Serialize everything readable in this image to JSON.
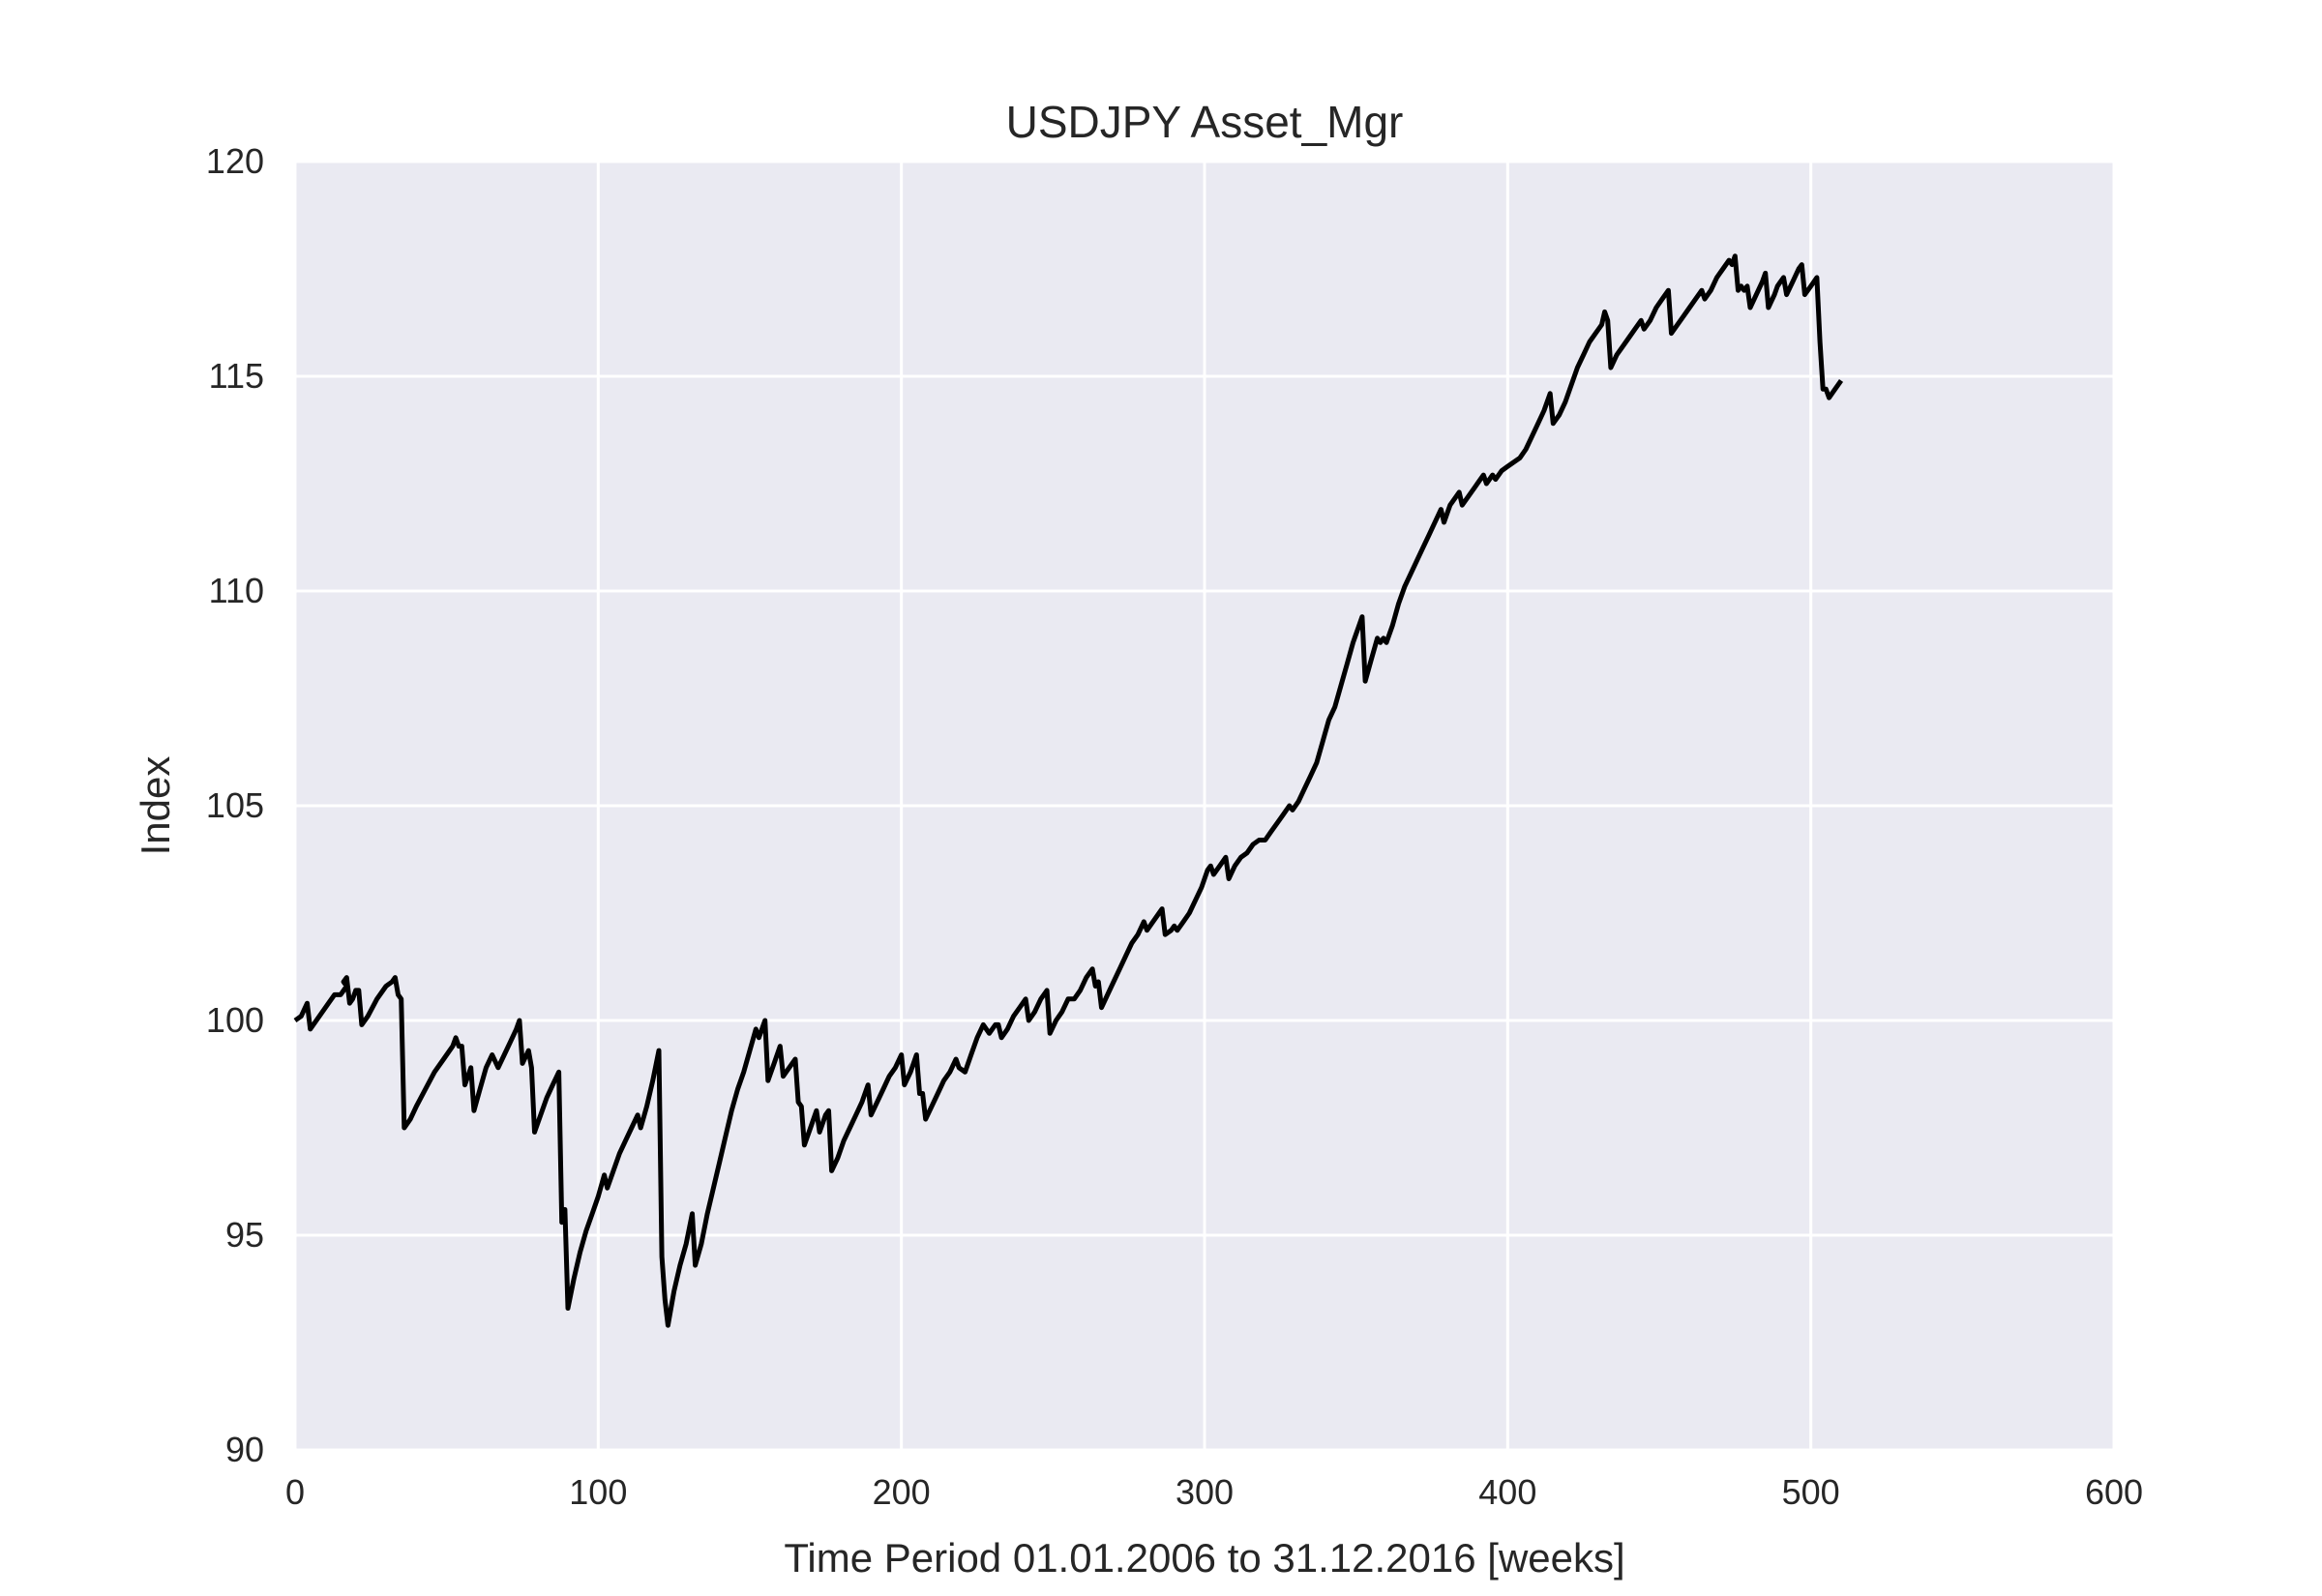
{
  "chart_data": {
    "type": "line",
    "title": "USDJPY Asset_Mgr",
    "xlabel": "Time Period 01.01.2006 to 31.12.2016 [weeks]",
    "ylabel": "Index",
    "xlim": [
      0,
      600
    ],
    "ylim": [
      90,
      120
    ],
    "xticks": [
      0,
      100,
      200,
      300,
      400,
      500,
      600
    ],
    "yticks": [
      90,
      95,
      100,
      105,
      110,
      115,
      120
    ],
    "grid": true,
    "colors": {
      "background": "#eaeaf2",
      "grid": "#ffffff",
      "line": "#000000",
      "text": "#262626"
    },
    "series": [
      {
        "points": [
          [
            0,
            100.0
          ],
          [
            2,
            100.1
          ],
          [
            4,
            100.4
          ],
          [
            5,
            99.8
          ],
          [
            8,
            100.1
          ],
          [
            11,
            100.4
          ],
          [
            13,
            100.6
          ],
          [
            15,
            100.6
          ],
          [
            17,
            100.8
          ],
          [
            16,
            100.9
          ],
          [
            17,
            101.0
          ],
          [
            18,
            100.4
          ],
          [
            19,
            100.5
          ],
          [
            20,
            100.7
          ],
          [
            21,
            100.7
          ],
          [
            22,
            99.9
          ],
          [
            24,
            100.1
          ],
          [
            27,
            100.5
          ],
          [
            30,
            100.8
          ],
          [
            32,
            100.9
          ],
          [
            33,
            101.0
          ],
          [
            34,
            100.6
          ],
          [
            35,
            100.5
          ],
          [
            36,
            97.5
          ],
          [
            38,
            97.7
          ],
          [
            40,
            98.0
          ],
          [
            43,
            98.4
          ],
          [
            46,
            98.8
          ],
          [
            49,
            99.1
          ],
          [
            52,
            99.4
          ],
          [
            53,
            99.6
          ],
          [
            54,
            99.4
          ],
          [
            55,
            99.4
          ],
          [
            56,
            98.5
          ],
          [
            58,
            98.9
          ],
          [
            59,
            97.9
          ],
          [
            61,
            98.4
          ],
          [
            63,
            98.9
          ],
          [
            65,
            99.2
          ],
          [
            67,
            98.9
          ],
          [
            69,
            99.2
          ],
          [
            71,
            99.5
          ],
          [
            73,
            99.8
          ],
          [
            74,
            100.0
          ],
          [
            75,
            99.0
          ],
          [
            77,
            99.3
          ],
          [
            78,
            98.9
          ],
          [
            79,
            97.4
          ],
          [
            81,
            97.8
          ],
          [
            83,
            98.2
          ],
          [
            85,
            98.5
          ],
          [
            87,
            98.8
          ],
          [
            88,
            95.3
          ],
          [
            89,
            95.6
          ],
          [
            90,
            93.3
          ],
          [
            92,
            94.0
          ],
          [
            94,
            94.6
          ],
          [
            96,
            95.1
          ],
          [
            98,
            95.5
          ],
          [
            100,
            95.9
          ],
          [
            102,
            96.4
          ],
          [
            103,
            96.1
          ],
          [
            105,
            96.5
          ],
          [
            107,
            96.9
          ],
          [
            109,
            97.2
          ],
          [
            111,
            97.5
          ],
          [
            113,
            97.8
          ],
          [
            114,
            97.5
          ],
          [
            116,
            98.0
          ],
          [
            118,
            98.6
          ],
          [
            120,
            99.3
          ],
          [
            121,
            94.5
          ],
          [
            122,
            93.5
          ],
          [
            123,
            92.9
          ],
          [
            125,
            93.7
          ],
          [
            127,
            94.3
          ],
          [
            129,
            94.8
          ],
          [
            131,
            95.5
          ],
          [
            132,
            94.3
          ],
          [
            134,
            94.8
          ],
          [
            136,
            95.5
          ],
          [
            138,
            96.1
          ],
          [
            140,
            96.7
          ],
          [
            142,
            97.3
          ],
          [
            144,
            97.9
          ],
          [
            146,
            98.4
          ],
          [
            148,
            98.8
          ],
          [
            150,
            99.3
          ],
          [
            152,
            99.8
          ],
          [
            153,
            99.6
          ],
          [
            155,
            100.0
          ],
          [
            156,
            98.6
          ],
          [
            158,
            99.0
          ],
          [
            160,
            99.4
          ],
          [
            161,
            98.7
          ],
          [
            163,
            98.9
          ],
          [
            165,
            99.1
          ],
          [
            166,
            98.1
          ],
          [
            167,
            98.0
          ],
          [
            168,
            97.1
          ],
          [
            170,
            97.5
          ],
          [
            172,
            97.9
          ],
          [
            173,
            97.4
          ],
          [
            175,
            97.8
          ],
          [
            176,
            97.9
          ],
          [
            177,
            96.5
          ],
          [
            179,
            96.8
          ],
          [
            181,
            97.2
          ],
          [
            183,
            97.5
          ],
          [
            185,
            97.8
          ],
          [
            187,
            98.1
          ],
          [
            189,
            98.5
          ],
          [
            190,
            97.8
          ],
          [
            192,
            98.1
          ],
          [
            194,
            98.4
          ],
          [
            196,
            98.7
          ],
          [
            198,
            98.9
          ],
          [
            200,
            99.2
          ],
          [
            201,
            98.5
          ],
          [
            203,
            98.8
          ],
          [
            204,
            99.0
          ],
          [
            205,
            99.2
          ],
          [
            206,
            98.3
          ],
          [
            207,
            98.3
          ],
          [
            208,
            97.7
          ],
          [
            210,
            98.0
          ],
          [
            212,
            98.3
          ],
          [
            214,
            98.6
          ],
          [
            216,
            98.8
          ],
          [
            218,
            99.1
          ],
          [
            219,
            98.9
          ],
          [
            221,
            98.8
          ],
          [
            223,
            99.2
          ],
          [
            225,
            99.6
          ],
          [
            227,
            99.9
          ],
          [
            229,
            99.7
          ],
          [
            231,
            99.9
          ],
          [
            232,
            99.9
          ],
          [
            233,
            99.6
          ],
          [
            235,
            99.8
          ],
          [
            237,
            100.1
          ],
          [
            239,
            100.3
          ],
          [
            241,
            100.5
          ],
          [
            242,
            100.0
          ],
          [
            244,
            100.2
          ],
          [
            246,
            100.5
          ],
          [
            248,
            100.7
          ],
          [
            249,
            99.7
          ],
          [
            251,
            100.0
          ],
          [
            253,
            100.2
          ],
          [
            255,
            100.5
          ],
          [
            257,
            100.5
          ],
          [
            259,
            100.7
          ],
          [
            261,
            101.0
          ],
          [
            263,
            101.2
          ],
          [
            264,
            100.8
          ],
          [
            265,
            100.9
          ],
          [
            266,
            100.3
          ],
          [
            268,
            100.6
          ],
          [
            270,
            100.9
          ],
          [
            272,
            101.2
          ],
          [
            274,
            101.5
          ],
          [
            276,
            101.8
          ],
          [
            278,
            102.0
          ],
          [
            280,
            102.3
          ],
          [
            281,
            102.1
          ],
          [
            283,
            102.3
          ],
          [
            285,
            102.5
          ],
          [
            286,
            102.6
          ],
          [
            287,
            102.0
          ],
          [
            289,
            102.1
          ],
          [
            290,
            102.2
          ],
          [
            291,
            102.1
          ],
          [
            293,
            102.3
          ],
          [
            295,
            102.5
          ],
          [
            297,
            102.8
          ],
          [
            299,
            103.1
          ],
          [
            301,
            103.5
          ],
          [
            302,
            103.6
          ],
          [
            303,
            103.4
          ],
          [
            305,
            103.6
          ],
          [
            307,
            103.8
          ],
          [
            308,
            103.3
          ],
          [
            310,
            103.6
          ],
          [
            312,
            103.8
          ],
          [
            314,
            103.9
          ],
          [
            316,
            104.1
          ],
          [
            318,
            104.2
          ],
          [
            320,
            104.2
          ],
          [
            322,
            104.4
          ],
          [
            324,
            104.6
          ],
          [
            326,
            104.8
          ],
          [
            328,
            105.0
          ],
          [
            329,
            104.9
          ],
          [
            331,
            105.1
          ],
          [
            333,
            105.4
          ],
          [
            335,
            105.7
          ],
          [
            337,
            106.0
          ],
          [
            339,
            106.5
          ],
          [
            341,
            107.0
          ],
          [
            343,
            107.3
          ],
          [
            345,
            107.8
          ],
          [
            347,
            108.3
          ],
          [
            349,
            108.8
          ],
          [
            351,
            109.2
          ],
          [
            352,
            109.4
          ],
          [
            353,
            107.9
          ],
          [
            355,
            108.4
          ],
          [
            357,
            108.9
          ],
          [
            358,
            108.8
          ],
          [
            359,
            108.9
          ],
          [
            360,
            108.8
          ],
          [
            362,
            109.2
          ],
          [
            364,
            109.7
          ],
          [
            366,
            110.1
          ],
          [
            368,
            110.4
          ],
          [
            370,
            110.7
          ],
          [
            372,
            111.0
          ],
          [
            374,
            111.3
          ],
          [
            376,
            111.6
          ],
          [
            378,
            111.9
          ],
          [
            379,
            111.6
          ],
          [
            381,
            112.0
          ],
          [
            383,
            112.2
          ],
          [
            384,
            112.3
          ],
          [
            385,
            112.0
          ],
          [
            387,
            112.2
          ],
          [
            389,
            112.4
          ],
          [
            391,
            112.6
          ],
          [
            392,
            112.7
          ],
          [
            393,
            112.5
          ],
          [
            395,
            112.7
          ],
          [
            396,
            112.6
          ],
          [
            398,
            112.8
          ],
          [
            400,
            112.9
          ],
          [
            402,
            113.0
          ],
          [
            404,
            113.1
          ],
          [
            406,
            113.3
          ],
          [
            408,
            113.6
          ],
          [
            410,
            113.9
          ],
          [
            412,
            114.2
          ],
          [
            414,
            114.6
          ],
          [
            415,
            113.9
          ],
          [
            417,
            114.1
          ],
          [
            419,
            114.4
          ],
          [
            421,
            114.8
          ],
          [
            423,
            115.2
          ],
          [
            425,
            115.5
          ],
          [
            427,
            115.8
          ],
          [
            429,
            116.0
          ],
          [
            431,
            116.2
          ],
          [
            432,
            116.5
          ],
          [
            433,
            116.3
          ],
          [
            434,
            115.2
          ],
          [
            436,
            115.5
          ],
          [
            438,
            115.7
          ],
          [
            440,
            115.9
          ],
          [
            442,
            116.1
          ],
          [
            444,
            116.3
          ],
          [
            445,
            116.1
          ],
          [
            447,
            116.3
          ],
          [
            449,
            116.6
          ],
          [
            451,
            116.8
          ],
          [
            453,
            117.0
          ],
          [
            454,
            116.0
          ],
          [
            456,
            116.2
          ],
          [
            458,
            116.4
          ],
          [
            460,
            116.6
          ],
          [
            462,
            116.8
          ],
          [
            464,
            117.0
          ],
          [
            465,
            116.8
          ],
          [
            467,
            117.0
          ],
          [
            469,
            117.3
          ],
          [
            471,
            117.5
          ],
          [
            473,
            117.7
          ],
          [
            474,
            117.6
          ],
          [
            475,
            117.8
          ],
          [
            476,
            117.0
          ],
          [
            477,
            117.1
          ],
          [
            478,
            117.0
          ],
          [
            479,
            117.1
          ],
          [
            480,
            116.6
          ],
          [
            482,
            116.9
          ],
          [
            484,
            117.2
          ],
          [
            485,
            117.4
          ],
          [
            486,
            116.6
          ],
          [
            488,
            116.9
          ],
          [
            489,
            117.1
          ],
          [
            490,
            117.2
          ],
          [
            491,
            117.3
          ],
          [
            492,
            116.9
          ],
          [
            494,
            117.2
          ],
          [
            496,
            117.5
          ],
          [
            497,
            117.6
          ],
          [
            498,
            116.9
          ],
          [
            500,
            117.1
          ],
          [
            502,
            117.3
          ],
          [
            503,
            115.8
          ],
          [
            504,
            114.7
          ],
          [
            505,
            114.7
          ],
          [
            506,
            114.5
          ],
          [
            508,
            114.7
          ],
          [
            510,
            114.9
          ]
        ]
      }
    ]
  }
}
